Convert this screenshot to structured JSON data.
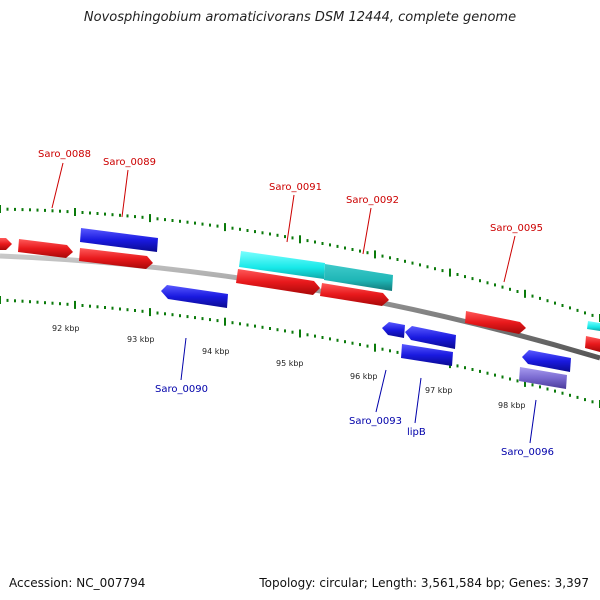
{
  "title": "Novosphingobium aromaticivorans DSM 12444, complete genome",
  "footer": {
    "accession": "Accession: NC_007794",
    "summary": "Topology: circular; Length: 3,561,584 bp; Genes: 3,397"
  },
  "colors": {
    "forward_gene": "#e8191c",
    "reverse_gene": "#1a1ae0",
    "rna_gene": "#17e8e8",
    "rna_gene_dark": "#1fb6b6",
    "pseudo_gene": "#7a6ad0",
    "backbone": "#8a8a8a",
    "tick": "#0a7a0a",
    "forward_label": "#cc0000",
    "reverse_label": "#0000aa"
  },
  "scale": {
    "ticks": [
      "92 kbp",
      "93 kbp",
      "94 kbp",
      "95 kbp",
      "96 kbp",
      "97 kbp",
      "98 kbp"
    ]
  },
  "forward_genes": [
    {
      "label": "Saro_0088"
    },
    {
      "label": "Saro_0089"
    },
    {
      "label": "Saro_0091"
    },
    {
      "label": "Saro_0092"
    },
    {
      "label": "Saro_0095"
    }
  ],
  "reverse_genes": [
    {
      "label": "Saro_0090"
    },
    {
      "label": "Saro_0093"
    },
    {
      "label": "lipB"
    },
    {
      "label": "Saro_0096"
    }
  ]
}
